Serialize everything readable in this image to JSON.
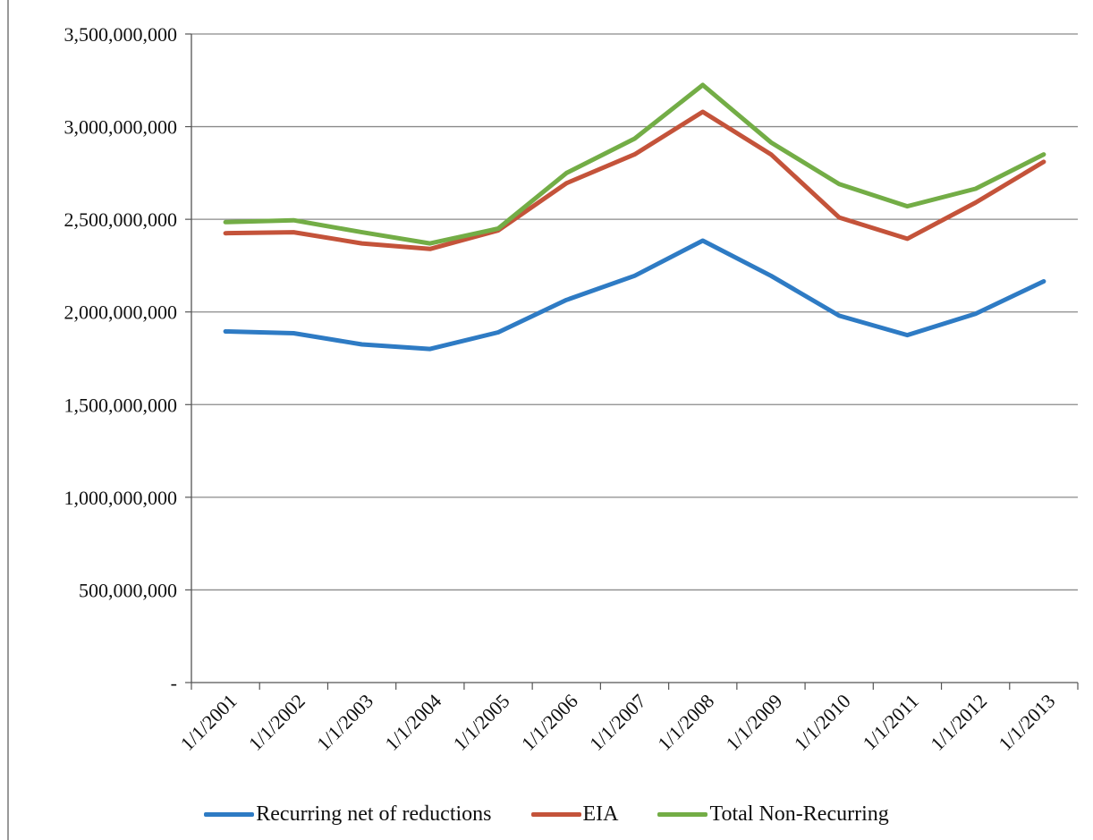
{
  "chart_data": {
    "type": "line",
    "title": "",
    "xlabel": "",
    "ylabel": "",
    "categories": [
      "1/1/2001",
      "1/1/2002",
      "1/1/2003",
      "1/1/2004",
      "1/1/2005",
      "1/1/2006",
      "1/1/2007",
      "1/1/2008",
      "1/1/2009",
      "1/1/2010",
      "1/1/2011",
      "1/1/2012",
      "1/1/2013"
    ],
    "ylim": [
      0,
      3500000000
    ],
    "y_ticks": [
      {
        "value": 0,
        "label": "-"
      },
      {
        "value": 500000000,
        "label": "500,000,000"
      },
      {
        "value": 1000000000,
        "label": "1,000,000,000"
      },
      {
        "value": 1500000000,
        "label": "1,500,000,000"
      },
      {
        "value": 2000000000,
        "label": "2,000,000,000"
      },
      {
        "value": 2500000000,
        "label": "2,500,000,000"
      },
      {
        "value": 3000000000,
        "label": "3,000,000,000"
      },
      {
        "value": 3500000000,
        "label": "3,500,000,000"
      }
    ],
    "grid": "horizontal",
    "legend_position": "bottom",
    "series": [
      {
        "name": "Recurring net of reductions",
        "color": "#2E7BC4",
        "values": [
          1895000000,
          1885000000,
          1825000000,
          1800000000,
          1890000000,
          2065000000,
          2195000000,
          2385000000,
          2195000000,
          1980000000,
          1875000000,
          1990000000,
          2165000000
        ]
      },
      {
        "name": "EIA",
        "color": "#C4533A",
        "values": [
          2425000000,
          2430000000,
          2370000000,
          2340000000,
          2440000000,
          2695000000,
          2850000000,
          3080000000,
          2850000000,
          2510000000,
          2395000000,
          2590000000,
          2810000000
        ]
      },
      {
        "name": "Total Non-Recurring",
        "color": "#73AD46",
        "values": [
          2485000000,
          2495000000,
          2430000000,
          2370000000,
          2450000000,
          2750000000,
          2935000000,
          3225000000,
          2915000000,
          2690000000,
          2570000000,
          2665000000,
          2850000000
        ]
      }
    ]
  }
}
